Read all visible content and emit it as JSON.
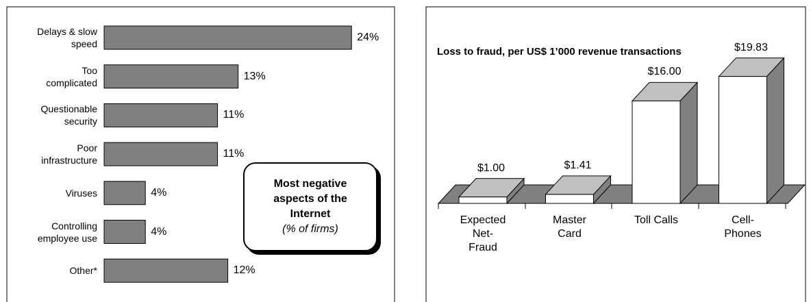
{
  "chart_data": [
    {
      "type": "hbar",
      "title": "Most negative aspects of the Internet",
      "subtitle": "(% of firms)",
      "categories": [
        "Delays & slow\nspeed",
        "Too\ncomplicated",
        "Questionable\nsecurity",
        "Poor\ninfrastructure",
        "Viruses",
        "Controlling\nemployee use",
        "Other*"
      ],
      "values": [
        24,
        13,
        11,
        11,
        4,
        4,
        12
      ],
      "value_labels": [
        "24%",
        "13%",
        "11%",
        "11%",
        "4%",
        "4%",
        "12%"
      ],
      "color": "#808080"
    },
    {
      "type": "bar3d",
      "title": "Loss to fraud, per US$ 1’000 revenue transactions",
      "categories": [
        "Expected\nNet-\nFraud",
        "Master\nCard",
        "Toll Calls",
        "Cell-\nPhones"
      ],
      "values": [
        1.0,
        1.41,
        16.0,
        19.83
      ],
      "value_labels": [
        "$1.00",
        "$1.41",
        "$16.00",
        "$19.83"
      ],
      "color": "#ffffff",
      "top_color": "#c0c0c0",
      "side_color": "#808080",
      "floor_color": "#808080"
    }
  ]
}
